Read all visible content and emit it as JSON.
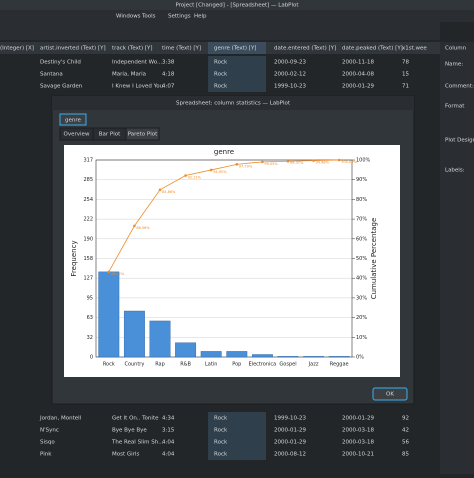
{
  "window": {
    "title": "Project [Changed] - [Spreadsheet] — LabPlot",
    "menu": [
      "Windows",
      "Tools",
      "Settings",
      "Help"
    ]
  },
  "spreadsheet": {
    "headers": [
      "r (Integer) [X]",
      "artist.inverted (Text) [Y]",
      "track (Text) [Y]",
      "time (Text) [Y]",
      "genre (Text) [Y]",
      "date.entered (Text) [Y]",
      "date.peaked (Text) [Y]",
      "x1st.wee"
    ],
    "top_rows": [
      [
        "Destiny's Child",
        "Independent Wo...",
        "3:38",
        "Rock",
        "2000-09-23",
        "2000-11-18",
        "78"
      ],
      [
        "Santana",
        "Maria, Maria",
        "4:18",
        "Rock",
        "2000-02-12",
        "2000-04-08",
        "15"
      ],
      [
        "Savage Garden",
        "I Knew I Loved You",
        "4:07",
        "Rock",
        "1999-10-23",
        "2000-01-29",
        "71"
      ]
    ],
    "bottom_rows": [
      [
        "Jordan, Montell",
        "Get It On.. Tonite",
        "4:34",
        "Rock",
        "1999-10-23",
        "2000-01-29",
        "92"
      ],
      [
        "N'Sync",
        "Bye Bye Bye",
        "3:15",
        "Rock",
        "2000-01-29",
        "2000-03-18",
        "42"
      ],
      [
        "Sisqo",
        "The Real Slim Sh...",
        "4:04",
        "Rock",
        "2000-01-29",
        "2000-03-18",
        "56"
      ],
      [
        "Pink",
        "Most Girls",
        "4:04",
        "Rock",
        "2000-08-12",
        "2000-10-21",
        "85"
      ]
    ]
  },
  "side_panel": {
    "heading": "Column",
    "name": "Name:",
    "comment": "Comment:",
    "format": "Format",
    "plot_designation": "Plot Designation:",
    "labels": "Labels:"
  },
  "dialog": {
    "title": "Spreadsheet: column statistics — LabPlot",
    "column_tab": "genre",
    "tabs": [
      "Overview",
      "Bar Plot",
      "Pareto Plot"
    ],
    "ok": "OK"
  },
  "chart_data": {
    "type": "pareto",
    "title": "genre",
    "y_label": "Frequency",
    "y2_label": "Cumulative Percentage",
    "categories": [
      "Rock",
      "Country",
      "Rap",
      "R&B",
      "Latin",
      "Pop",
      "Electronica",
      "Gospel",
      "Jazz",
      "Reggae"
    ],
    "series": [
      {
        "name": "Frequency",
        "color": "#4a90d9",
        "values": [
          137,
          74,
          58,
          23,
          9,
          9,
          4,
          1,
          1,
          1
        ]
      },
      {
        "name": "Cumulative Percentage",
        "color": "#f28c28",
        "axis": "y2",
        "values": [
          43.22,
          66.56,
          84.86,
          92.11,
          94.95,
          97.79,
          99.05,
          99.37,
          99.68,
          100
        ],
        "value_labels": [
          "43.22%",
          "66.56%",
          "84.86%",
          "92.11%",
          "94.95%",
          "97.79%",
          "99.05%",
          "99.37%",
          "99.68%",
          "100.00%"
        ]
      }
    ],
    "ylim": [
      0,
      317
    ],
    "yticks": [
      0,
      {
        "value": 31.7,
        "label": "32"
      },
      {
        "value": 63.4,
        "label": "63"
      },
      {
        "value": 95.1,
        "label": "95"
      },
      {
        "value": 126.8,
        "label": "127"
      },
      {
        "value": 158.5,
        "label": "158"
      },
      {
        "value": 190.2,
        "label": "190"
      },
      {
        "value": 221.9,
        "label": "222"
      },
      {
        "value": 253.6,
        "label": "254"
      },
      {
        "value": 285.3,
        "label": "285"
      },
      317
    ],
    "y2lim": [
      0,
      100
    ],
    "y2ticks": [
      {
        "value": 0,
        "label": "0%"
      },
      {
        "value": 10,
        "label": "10%"
      },
      {
        "value": 20,
        "label": "20%"
      },
      {
        "value": 30,
        "label": "30%"
      },
      {
        "value": 40,
        "label": "40%"
      },
      {
        "value": 50,
        "label": "50%"
      },
      {
        "value": 60,
        "label": "60%"
      },
      {
        "value": 70,
        "label": "70%"
      },
      {
        "value": 80,
        "label": "80%"
      },
      {
        "value": 90,
        "label": "90%"
      },
      {
        "value": 100,
        "label": "100%"
      }
    ],
    "grid": true
  }
}
